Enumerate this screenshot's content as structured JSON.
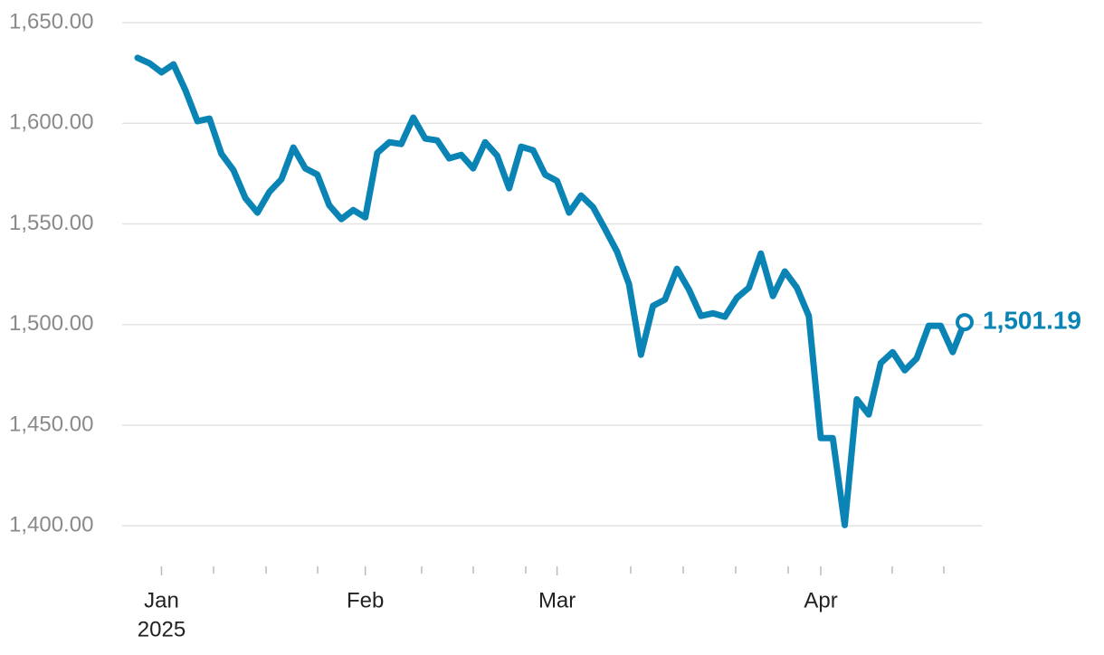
{
  "chart_data": {
    "type": "line",
    "categories": [
      null,
      null,
      "Jan",
      null,
      null,
      null,
      null,
      null,
      null,
      null,
      null,
      null,
      null,
      null,
      null,
      null,
      null,
      null,
      null,
      "Feb",
      null,
      null,
      null,
      null,
      null,
      null,
      null,
      null,
      null,
      null,
      null,
      null,
      null,
      null,
      null,
      "Mar",
      null,
      null,
      null,
      null,
      null,
      null,
      null,
      null,
      null,
      null,
      null,
      null,
      null,
      null,
      null,
      null,
      null,
      null,
      null,
      null,
      null,
      "Apr",
      null,
      null,
      null,
      null,
      null,
      null,
      null,
      null,
      null,
      null,
      null,
      null
    ],
    "x_year": "2025",
    "values": [
      1632.5,
      1629.8,
      1625.3,
      1629.3,
      1616.3,
      1601,
      1602.3,
      1584.8,
      1576.7,
      1562.8,
      1555.6,
      1565.9,
      1572.2,
      1588,
      1577.6,
      1574.5,
      1559.2,
      1552.4,
      1556.9,
      1553.3,
      1585.3,
      1590.6,
      1589.7,
      1602.8,
      1592.4,
      1591.5,
      1582.6,
      1584.3,
      1577.6,
      1590.6,
      1583.9,
      1567.7,
      1588.4,
      1586.6,
      1574.5,
      1571.3,
      1555.6,
      1564.1,
      1558.3,
      1547.5,
      1536.2,
      1520.1,
      1485,
      1509.3,
      1512.4,
      1527.7,
      1517.4,
      1504.3,
      1505.6,
      1503.9,
      1513.3,
      1518.3,
      1535.3,
      1514.2,
      1526.4,
      1518.3,
      1504.3,
      1443.6,
      1443.6,
      1400.4,
      1462.9,
      1455.3,
      1480.9,
      1486.3,
      1477.3,
      1483.2,
      1499.4,
      1499.4,
      1486.3,
      1501.19
    ],
    "value_labels": [
      null,
      null,
      null,
      null,
      null,
      null,
      null,
      null,
      null,
      null,
      null,
      null,
      null,
      null,
      null,
      null,
      null,
      null,
      null,
      null,
      null,
      null,
      null,
      null,
      null,
      null,
      null,
      null,
      null,
      null,
      null,
      null,
      null,
      null,
      null,
      null,
      null,
      null,
      null,
      null,
      null,
      null,
      null,
      null,
      null,
      null,
      null,
      null,
      null,
      null,
      null,
      null,
      null,
      null,
      null,
      null,
      null,
      null,
      null,
      null,
      null,
      null,
      null,
      null,
      null,
      null,
      null,
      null,
      null,
      "1,501.19"
    ],
    "color": "#0a84b4",
    "ylim": [
      1379,
      1650
    ],
    "yticks": [
      {
        "value": 1400,
        "label": "1,400.00"
      },
      {
        "value": 1450,
        "label": "1,450.00"
      },
      {
        "value": 1500,
        "label": "1,500.00"
      },
      {
        "value": 1550,
        "label": "1,550.00"
      },
      {
        "value": 1600,
        "label": "1,600.00"
      },
      {
        "value": 1650,
        "label": "1,650.00"
      }
    ],
    "grid": true
  }
}
